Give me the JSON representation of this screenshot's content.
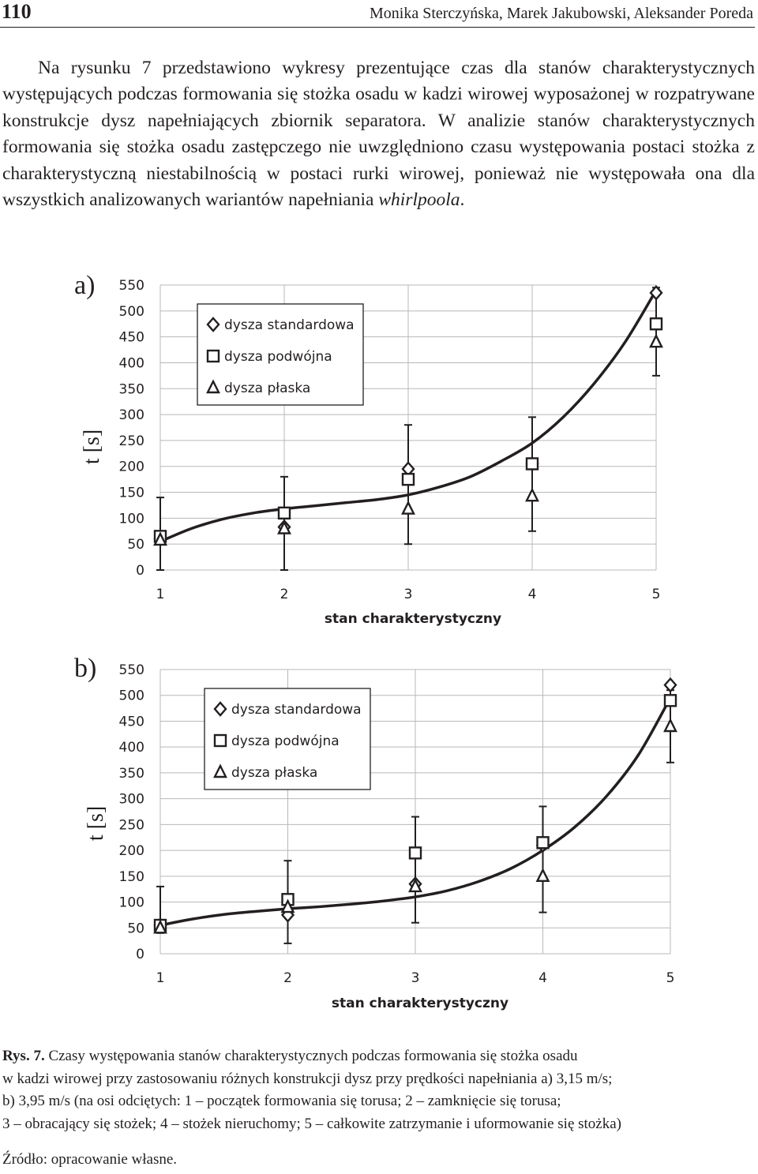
{
  "header": {
    "page_number": "110",
    "authors": "Monika Sterczyńska, Marek Jakubowski, Aleksander Poreda"
  },
  "body_text": {
    "p1": "Na rysunku 7 przedstawiono wykresy prezentujące czas dla stanów charakterystycznych występujących podczas formowania się stożka osadu w kadzi wirowej wyposażonej w rozpatrywane konstrukcje dysz napełniających zbiornik separatora. W analizie stanów charakterystycznych formowania się stożka osadu zastępczego nie uwzględniono czasu występowania postaci stożka z charakterystyczną niestabilnością w postaci rurki wirowej, ponieważ nie występowała ona dla wszystkich analizowanych wariantów napełniania ",
    "p1_italic": "whirlpoola",
    "p1_end": "."
  },
  "chart_data": [
    {
      "panel": "a)",
      "type": "scatter",
      "xlabel": "stan charakterystyczny",
      "ylabel": "t [s]",
      "x_ticks": [
        "1",
        "2",
        "3",
        "4",
        "5"
      ],
      "y_ticks": [
        "0",
        "50",
        "100",
        "150",
        "200",
        "250",
        "300",
        "350",
        "400",
        "450",
        "500",
        "550"
      ],
      "ylim": [
        0,
        550
      ],
      "grid": true,
      "legend": {
        "position": "top-left",
        "entries": [
          "dysza standardowa",
          "dysza podwójna",
          "dysza płaska"
        ]
      },
      "x": [
        1,
        2,
        3,
        4,
        5
      ],
      "series": [
        {
          "name": "dysza standardowa",
          "marker": "diamond",
          "values": [
            60,
            83,
            195,
            205,
            535
          ]
        },
        {
          "name": "dysza podwójna",
          "marker": "square",
          "values": [
            65,
            110,
            175,
            205,
            475
          ]
        },
        {
          "name": "dysza płaska",
          "marker": "triangle",
          "values": [
            58,
            80,
            118,
            143,
            440
          ]
        }
      ],
      "error_bars": [
        {
          "x": 1,
          "low": 0,
          "high": 140
        },
        {
          "x": 2,
          "low": 0,
          "high": 180
        },
        {
          "x": 3,
          "low": 50,
          "high": 280
        },
        {
          "x": 4,
          "low": 75,
          "high": 295
        },
        {
          "x": 5,
          "low": 375,
          "high": 545
        }
      ],
      "trend_curve": [
        [
          1,
          55
        ],
        [
          1.25,
          80
        ],
        [
          1.5,
          98
        ],
        [
          1.75,
          110
        ],
        [
          2,
          118
        ],
        [
          2.25,
          124
        ],
        [
          2.5,
          130
        ],
        [
          2.75,
          136
        ],
        [
          3,
          145
        ],
        [
          3.25,
          160
        ],
        [
          3.5,
          180
        ],
        [
          3.75,
          210
        ],
        [
          4,
          245
        ],
        [
          4.25,
          295
        ],
        [
          4.5,
          360
        ],
        [
          4.75,
          440
        ],
        [
          5,
          540
        ]
      ]
    },
    {
      "panel": "b)",
      "type": "scatter",
      "xlabel": "stan charakterystyczny",
      "ylabel": "t [s]",
      "x_ticks": [
        "1",
        "2",
        "3",
        "4",
        "5"
      ],
      "y_ticks": [
        "0",
        "50",
        "100",
        "150",
        "200",
        "250",
        "300",
        "350",
        "400",
        "450",
        "500",
        "550"
      ],
      "ylim": [
        0,
        550
      ],
      "grid": true,
      "legend": {
        "position": "top-left",
        "entries": [
          "dysza standardowa",
          "dysza podwójna",
          "dysza płaska"
        ]
      },
      "x": [
        1,
        2,
        3,
        4,
        5
      ],
      "series": [
        {
          "name": "dysza standardowa",
          "marker": "diamond",
          "values": [
            55,
            75,
            135,
            210,
            520
          ]
        },
        {
          "name": "dysza podwójna",
          "marker": "square",
          "values": [
            55,
            105,
            195,
            215,
            490
          ]
        },
        {
          "name": "dysza płaska",
          "marker": "triangle",
          "values": [
            50,
            90,
            130,
            150,
            440
          ]
        }
      ],
      "error_bars": [
        {
          "x": 1,
          "low": 40,
          "high": 130
        },
        {
          "x": 2,
          "low": 20,
          "high": 180
        },
        {
          "x": 3,
          "low": 60,
          "high": 265
        },
        {
          "x": 4,
          "low": 80,
          "high": 285
        },
        {
          "x": 5,
          "low": 370,
          "high": 510
        }
      ],
      "trend_curve": [
        [
          1,
          55
        ],
        [
          1.25,
          67
        ],
        [
          1.5,
          76
        ],
        [
          1.75,
          82
        ],
        [
          2,
          87
        ],
        [
          2.25,
          91
        ],
        [
          2.5,
          96
        ],
        [
          2.75,
          102
        ],
        [
          3,
          110
        ],
        [
          3.25,
          122
        ],
        [
          3.5,
          140
        ],
        [
          3.75,
          165
        ],
        [
          4,
          200
        ],
        [
          4.25,
          245
        ],
        [
          4.5,
          305
        ],
        [
          4.75,
          385
        ],
        [
          5,
          495
        ]
      ]
    }
  ],
  "caption": {
    "label": "Rys. 7.",
    "line1": " Czasy występowania stanów charakterystycznych podczas formowania się stożka osadu",
    "line2": "w kadzi wirowej przy zastosowaniu różnych konstrukcji dysz przy prędkości napełniania a) 3,15 m/s;",
    "line3": "b) 3,95 m/s (na osi odciętych: 1 – początek formowania się torusa; 2 – zamknięcie się torusa;",
    "line4": "3 – obracający się stożek; 4 – stożek nieruchomy; 5 – całkowite zatrzymanie i uformowanie się stożka)"
  },
  "source": "Źródło: opracowanie własne."
}
